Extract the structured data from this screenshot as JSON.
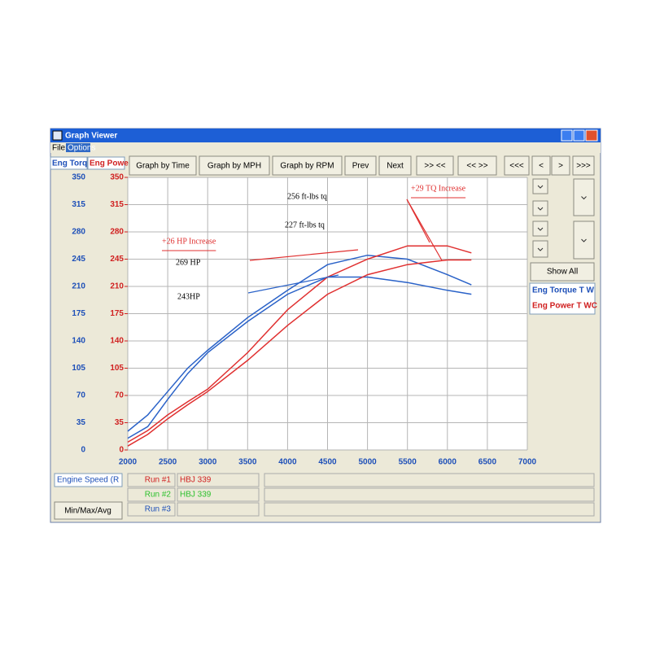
{
  "window": {
    "title": "Graph Viewer",
    "menu": [
      "File",
      "Options"
    ]
  },
  "toolbar": [
    "Graph by Time",
    "Graph by MPH",
    "Graph by RPM",
    "Prev",
    "Next",
    ">> <<",
    "<< >>",
    "<<<",
    "<",
    ">",
    ">>>"
  ],
  "axis_tabs": [
    "Eng Torq",
    "Eng Powe"
  ],
  "side_panel": {
    "show_all": "Show All",
    "legend": [
      "Eng Torque T W",
      "Eng Power T WC"
    ]
  },
  "chart_data": {
    "type": "line",
    "x": [
      2000,
      2250,
      2500,
      2750,
      3000,
      3500,
      4000,
      4500,
      5000,
      5500,
      6000,
      6300
    ],
    "series": [
      {
        "color": "#2a62c8",
        "values": [
          24,
          45,
          75,
          105,
          128,
          170,
          205,
          238,
          250,
          245,
          225,
          212
        ]
      },
      {
        "color": "#2a62c8",
        "values": [
          15,
          30,
          65,
          98,
          125,
          165,
          200,
          222,
          222,
          215,
          205,
          200
        ]
      },
      {
        "color": "#e03030",
        "axis": "y2",
        "values": [
          10,
          25,
          45,
          62,
          78,
          125,
          180,
          222,
          245,
          262,
          262,
          253
        ]
      },
      {
        "color": "#e03030",
        "axis": "y2",
        "values": [
          5,
          20,
          40,
          58,
          75,
          115,
          160,
          200,
          225,
          238,
          244,
          244
        ]
      }
    ],
    "xlim": [
      2000,
      7000
    ],
    "xticks": [
      2000,
      2500,
      3000,
      3500,
      4000,
      4500,
      5000,
      5500,
      6000,
      6500,
      7000
    ],
    "ylim": [
      0,
      350
    ],
    "yticks": [
      0,
      35,
      70,
      105,
      140,
      175,
      210,
      245,
      280,
      315,
      350
    ],
    "y2lim": [
      0,
      350
    ],
    "y2ticks": [
      0,
      35,
      70,
      105,
      140,
      175,
      210,
      245,
      280,
      315,
      350
    ],
    "grid": true,
    "annotations": [
      "256 ft-lbs tq",
      "+29 TQ Increase",
      "227 ft-lbs tq",
      "+26 HP Increase",
      "269 HP",
      "243HP"
    ]
  },
  "footer": {
    "x_channel": "Engine Speed (R",
    "button": "Min/Max/Avg",
    "runs": [
      {
        "label": "Run #1",
        "name": "HBJ 339"
      },
      {
        "label": "Run #2",
        "name": "HBJ 339"
      },
      {
        "label": "Run #3"
      }
    ]
  }
}
